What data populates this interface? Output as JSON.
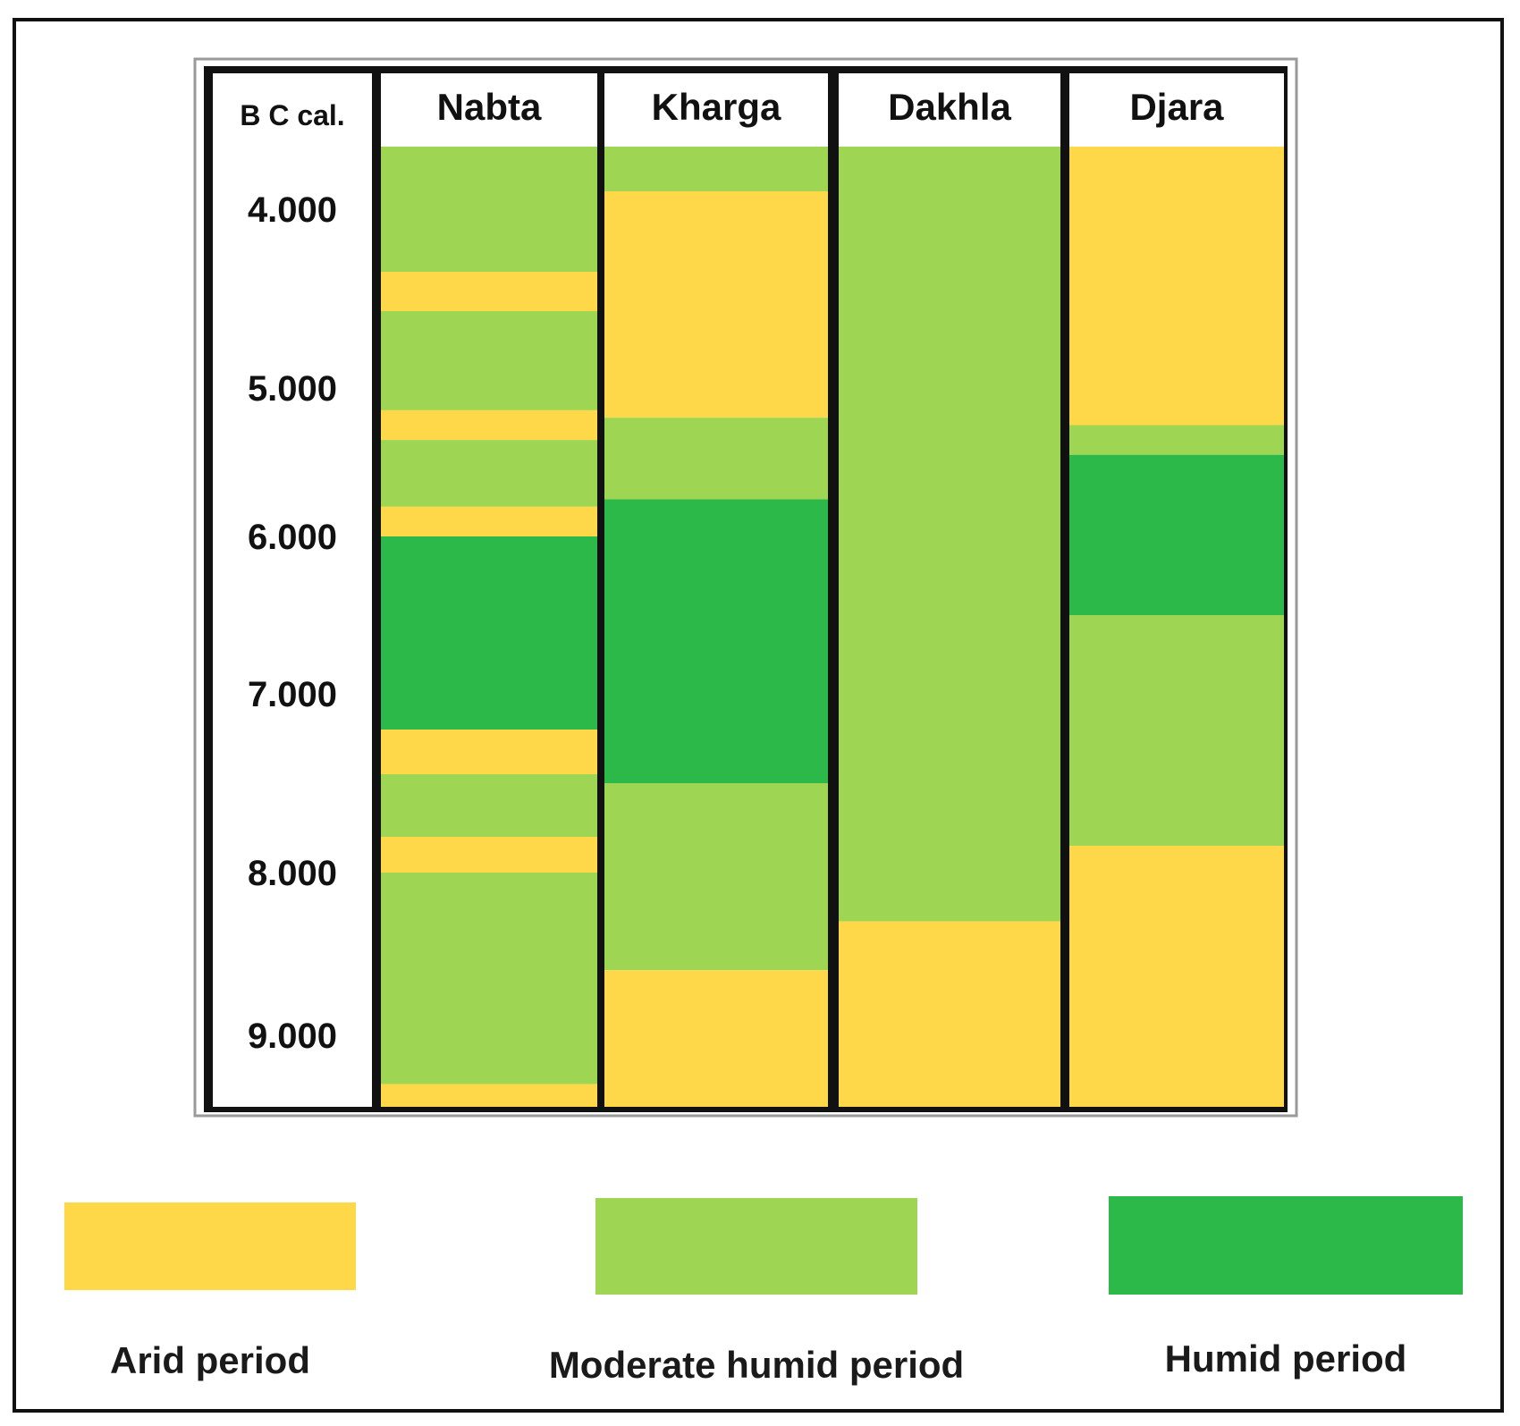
{
  "axis_label": "B C cal.",
  "ticks": [
    {
      "label": "4.000",
      "value": 4000
    },
    {
      "label": "5.000",
      "value": 5000
    },
    {
      "label": "6.000",
      "value": 6000
    },
    {
      "label": "7.000",
      "value": 7000
    },
    {
      "label": "8.000",
      "value": 8000
    },
    {
      "label": "9.000",
      "value": 9000
    }
  ],
  "colors": {
    "arid": "#FFD84A",
    "moderate": "#9ED654",
    "humid": "#2CB94A"
  },
  "legend": [
    {
      "key": "arid",
      "label": "Arid period"
    },
    {
      "key": "moderate",
      "label": "Moderate humid period"
    },
    {
      "key": "humid",
      "label": "Humid period"
    }
  ],
  "sites": [
    {
      "name": "Nabta",
      "periods": [
        {
          "from": 3650,
          "to": 4350,
          "type": "moderate"
        },
        {
          "from": 4350,
          "to": 4570,
          "type": "arid"
        },
        {
          "from": 4570,
          "to": 5150,
          "type": "moderate"
        },
        {
          "from": 5150,
          "to": 5350,
          "type": "arid"
        },
        {
          "from": 5350,
          "to": 5800,
          "type": "moderate"
        },
        {
          "from": 5800,
          "to": 6000,
          "type": "arid"
        },
        {
          "from": 6000,
          "to": 7200,
          "type": "humid"
        },
        {
          "from": 7200,
          "to": 7450,
          "type": "arid"
        },
        {
          "from": 7450,
          "to": 7800,
          "type": "moderate"
        },
        {
          "from": 7800,
          "to": 8000,
          "type": "arid"
        },
        {
          "from": 8000,
          "to": 9300,
          "type": "moderate"
        },
        {
          "from": 9300,
          "to": 9450,
          "type": "arid"
        }
      ]
    },
    {
      "name": "Kharga",
      "periods": [
        {
          "from": 3650,
          "to": 3900,
          "type": "moderate"
        },
        {
          "from": 3900,
          "to": 5200,
          "type": "arid"
        },
        {
          "from": 5200,
          "to": 5750,
          "type": "moderate"
        },
        {
          "from": 5750,
          "to": 7500,
          "type": "humid"
        },
        {
          "from": 7500,
          "to": 8600,
          "type": "moderate"
        },
        {
          "from": 8600,
          "to": 9450,
          "type": "arid"
        }
      ]
    },
    {
      "name": "Dakhla",
      "periods": [
        {
          "from": 3650,
          "to": 8300,
          "type": "moderate"
        },
        {
          "from": 8300,
          "to": 9450,
          "type": "arid"
        }
      ]
    },
    {
      "name": "Djara",
      "periods": [
        {
          "from": 3650,
          "to": 5250,
          "type": "arid"
        },
        {
          "from": 5250,
          "to": 5450,
          "type": "moderate"
        },
        {
          "from": 5450,
          "to": 6500,
          "type": "humid"
        },
        {
          "from": 6500,
          "to": 7850,
          "type": "moderate"
        },
        {
          "from": 7850,
          "to": 9450,
          "type": "arid"
        }
      ]
    }
  ]
}
